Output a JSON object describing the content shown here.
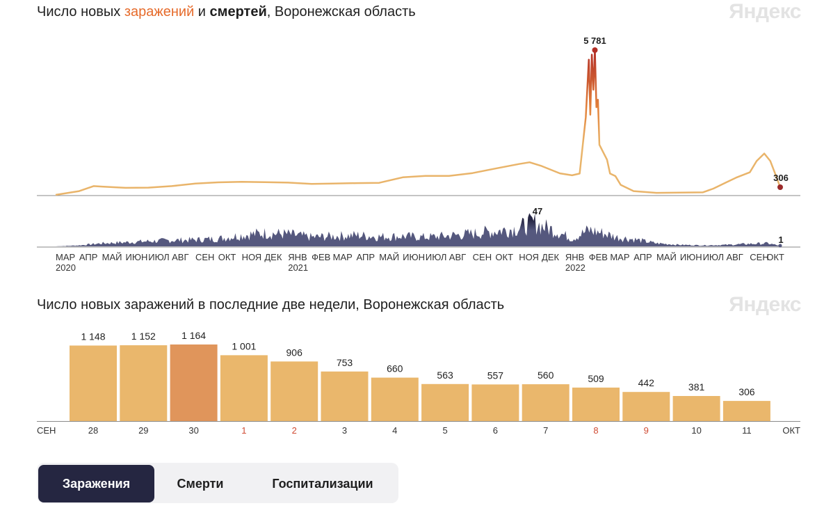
{
  "top_chart": {
    "title_parts": {
      "lead": "Число новых ",
      "infections": "заражений",
      "mid": " и ",
      "deaths": "смертей",
      "tail": ", Воронежская область"
    },
    "watermark": "Яндекс",
    "peak_cases_label": "5 781",
    "last_cases_label": "306",
    "peak_deaths_label": "47",
    "last_deaths_label": "1",
    "month_labels": [
      "МАР",
      "АПР",
      "МАЙ",
      "ИЮН",
      "ИЮЛ",
      "АВГ",
      "СЕН",
      "ОКТ",
      "НОЯ",
      "ДЕК",
      "ЯНВ",
      "ФЕВ",
      "МАР",
      "АПР",
      "МАЙ",
      "ИЮН",
      "ИЮЛ",
      "АВГ",
      "СЕН",
      "ОКТ",
      "НОЯ",
      "ДЕК",
      "ЯНВ",
      "ФЕВ",
      "МАР",
      "АПР",
      "МАЙ",
      "ИЮН",
      "ИЮЛ",
      "АВГ",
      "СЕН",
      "ОКТ"
    ],
    "year_labels": [
      {
        "month_index": 0,
        "text": "2020"
      },
      {
        "month_index": 10,
        "text": "2021"
      },
      {
        "month_index": 22,
        "text": "2022"
      }
    ],
    "colors": {
      "low": "#e9b46a",
      "mid": "#e3813a",
      "high": "#b32f26",
      "deaths": "#55587e",
      "deaths_dark": "#262644"
    }
  },
  "bottom_chart": {
    "title": "Число новых заражений в последние две недели, Воронежская область",
    "watermark": "Яндекс",
    "start_month": "СЕН",
    "end_month": "ОКТ",
    "bar_color": "#eab76c",
    "highlight_color": "#e0955b",
    "weekend_label_color": "#d04b33",
    "normal_label_color": "#333333"
  },
  "chart_data": [
    {
      "type": "line",
      "title": "Число новых заражений и смертей, Воронежская область",
      "series": [
        {
          "name": "заражений",
          "x": [
            "2020-03-01",
            "2020-04-01",
            "2020-04-20",
            "2020-05-01",
            "2020-06-01",
            "2020-07-01",
            "2020-08-01",
            "2020-09-01",
            "2020-10-01",
            "2020-11-01",
            "2020-12-01",
            "2021-01-01",
            "2021-02-01",
            "2021-03-01",
            "2021-04-01",
            "2021-05-01",
            "2021-06-01",
            "2021-07-01",
            "2021-08-01",
            "2021-09-01",
            "2021-10-01",
            "2021-11-01",
            "2021-11-15",
            "2021-12-01",
            "2021-12-25",
            "2022-01-10",
            "2022-01-20",
            "2022-01-28",
            "2022-02-01",
            "2022-02-03",
            "2022-02-05",
            "2022-02-07",
            "2022-02-09",
            "2022-02-11",
            "2022-02-13",
            "2022-02-15",
            "2022-02-20",
            "2022-02-25",
            "2022-03-01",
            "2022-03-08",
            "2022-03-15",
            "2022-04-01",
            "2022-05-01",
            "2022-06-01",
            "2022-07-01",
            "2022-07-15",
            "2022-08-01",
            "2022-08-15",
            "2022-09-01",
            "2022-09-10",
            "2022-09-20",
            "2022-09-28",
            "2022-10-05",
            "2022-10-11"
          ],
          "values": [
            0,
            150,
            350,
            330,
            280,
            290,
            350,
            450,
            500,
            520,
            510,
            490,
            440,
            450,
            470,
            480,
            700,
            760,
            760,
            870,
            1050,
            1230,
            1300,
            1150,
            860,
            780,
            850,
            3100,
            5400,
            3200,
            5600,
            4200,
            5781,
            3500,
            3800,
            2000,
            1700,
            1400,
            850,
            750,
            400,
            150,
            80,
            90,
            100,
            250,
            500,
            700,
            900,
            1350,
            1650,
            1350,
            800,
            306
          ]
        },
        {
          "name": "смертей",
          "x": [
            "2020-03-01",
            "2020-04-01",
            "2020-05-01",
            "2020-06-01",
            "2020-07-01",
            "2020-08-01",
            "2020-09-01",
            "2020-10-01",
            "2020-11-01",
            "2020-12-01",
            "2021-01-01",
            "2021-02-01",
            "2021-03-01",
            "2021-04-01",
            "2021-05-01",
            "2021-06-01",
            "2021-07-01",
            "2021-08-01",
            "2021-09-01",
            "2021-10-01",
            "2021-11-01",
            "2021-11-20",
            "2021-12-01",
            "2021-12-20",
            "2022-01-10",
            "2022-02-01",
            "2022-02-20",
            "2022-03-10",
            "2022-04-01",
            "2022-05-01",
            "2022-06-01",
            "2022-07-01",
            "2022-08-01",
            "2022-09-01",
            "2022-09-25",
            "2022-10-11"
          ],
          "values": [
            0,
            2,
            6,
            8,
            10,
            12,
            13,
            15,
            22,
            26,
            24,
            18,
            20,
            22,
            19,
            20,
            18,
            21,
            25,
            30,
            36,
            47,
            40,
            30,
            15,
            32,
            26,
            18,
            14,
            6,
            3,
            2,
            3,
            5,
            6,
            1
          ]
        }
      ],
      "ylim": [
        0,
        5781
      ]
    },
    {
      "type": "bar",
      "title": "Число новых заражений в последние две недели, Воронежская область",
      "categories": [
        "28",
        "29",
        "30",
        "1",
        "2",
        "3",
        "4",
        "5",
        "6",
        "7",
        "8",
        "9",
        "10",
        "11"
      ],
      "values": [
        1148,
        1152,
        1164,
        1001,
        906,
        753,
        660,
        563,
        557,
        560,
        509,
        442,
        381,
        306
      ],
      "value_labels": [
        "1 148",
        "1 152",
        "1 164",
        "1 001",
        "906",
        "753",
        "660",
        "563",
        "557",
        "560",
        "509",
        "442",
        "381",
        "306"
      ],
      "highlight_index": 2,
      "weekend_indices": [
        3,
        4,
        10,
        11
      ]
    }
  ],
  "tabs": [
    {
      "label": "Заражения",
      "active": true
    },
    {
      "label": "Смерти",
      "active": false
    },
    {
      "label": "Госпитализации",
      "active": false
    }
  ]
}
